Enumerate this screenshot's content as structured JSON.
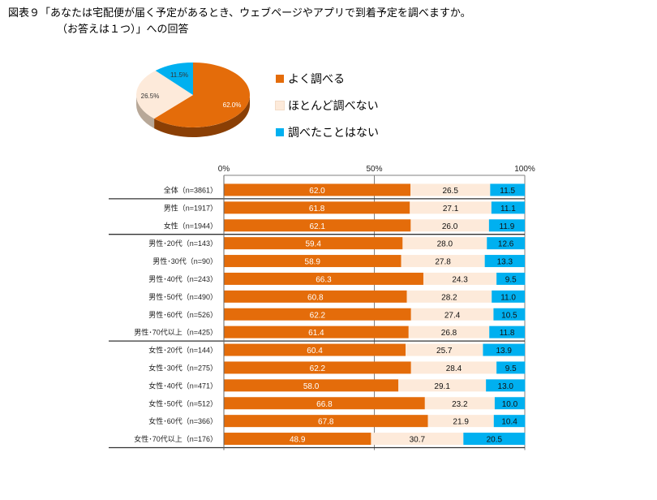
{
  "title": {
    "line1": "図表９「あなたは宅配便が届く予定があるとき、ウェブページやアプリで到着予定を調べますか。",
    "line2": "（お答えは１つ）」への回答"
  },
  "colors": {
    "often": "#E46C0A",
    "rarely": "#FDEADA",
    "never": "#00B0F0"
  },
  "chart_data": [
    {
      "type": "pie",
      "title": "",
      "labels": [
        "よく調べる",
        "ほとんど調べない",
        "調べたことはない"
      ],
      "values": [
        62.0,
        26.5,
        11.5
      ],
      "data_labels": [
        "62.0%",
        "26.5%",
        "11.5%"
      ],
      "legend_position": "right"
    },
    {
      "type": "bar",
      "orientation": "horizontal",
      "stacked": "percent",
      "categories": [
        "全体（n=3861）",
        "男性（n=1917）",
        "女性（n=1944）",
        "男性･20代（n=143）",
        "男性･30代（n=90）",
        "男性･40代（n=243）",
        "男性･50代（n=490）",
        "男性･60代（n=526）",
        "男性･70代以上（n=425）",
        "女性･20代（n=144）",
        "女性･30代（n=275）",
        "女性･40代（n=471）",
        "女性･50代（n=512）",
        "女性･60代（n=366）",
        "女性･70代以上（n=176）"
      ],
      "series": [
        {
          "name": "よく調べる",
          "values": [
            62.0,
            61.8,
            62.1,
            59.4,
            58.9,
            66.3,
            60.8,
            62.2,
            61.4,
            60.4,
            62.2,
            58.0,
            66.8,
            67.8,
            48.9
          ]
        },
        {
          "name": "ほとんど調べない",
          "values": [
            26.5,
            27.1,
            26.0,
            28.0,
            27.8,
            24.3,
            28.2,
            27.4,
            26.8,
            25.7,
            28.4,
            29.1,
            23.2,
            21.9,
            30.7
          ]
        },
        {
          "name": "調べたことはない",
          "values": [
            11.5,
            11.1,
            11.9,
            12.6,
            13.3,
            9.5,
            11.0,
            10.5,
            11.8,
            13.9,
            9.5,
            13.0,
            10.0,
            10.4,
            20.5
          ]
        }
      ],
      "xlim": [
        0,
        100
      ],
      "xticks": [
        "0%",
        "50%",
        "100%"
      ],
      "group_breaks_after": [
        0,
        2,
        8
      ],
      "grid": true
    }
  ]
}
